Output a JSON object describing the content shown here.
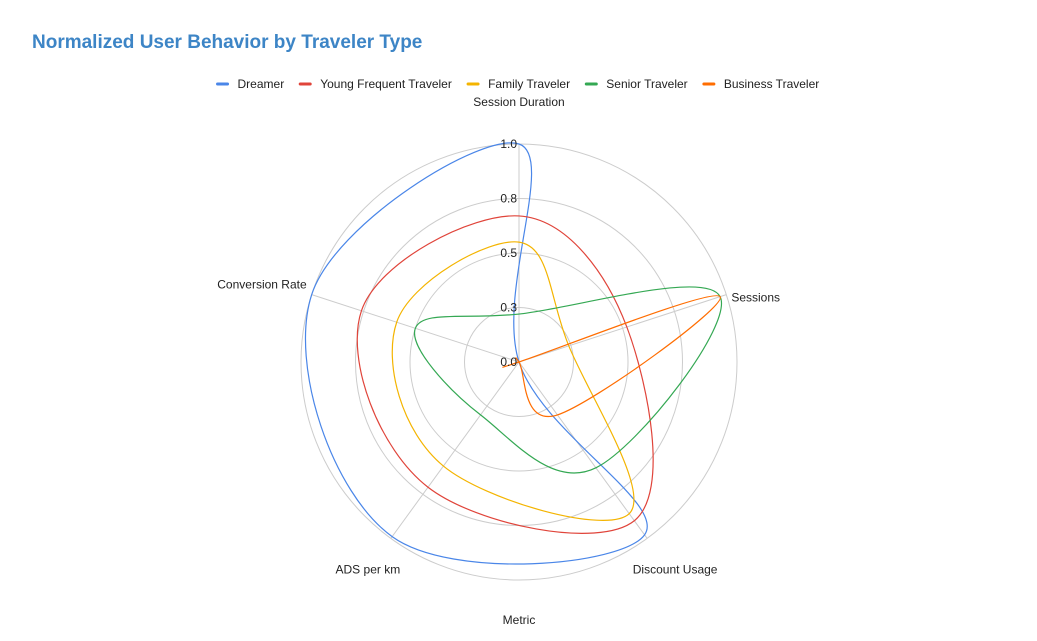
{
  "chart_data": {
    "type": "radar",
    "title": "Normalized User Behavior by Traveler Type",
    "xlabel": "Metric",
    "axes": [
      "Session Duration",
      "Sessions",
      "Discount Usage",
      "ADS per km",
      "Conversion Rate"
    ],
    "rlim": [
      0,
      1
    ],
    "ticks": [
      "0.0",
      "0.3",
      "0.5",
      "0.8",
      "1.0"
    ],
    "legend_position": "top",
    "grid": true,
    "series": [
      {
        "name": "Dreamer",
        "color": "#4a86e8",
        "values": [
          1.0,
          0.0,
          0.98,
          0.99,
          1.0
        ]
      },
      {
        "name": "Young Frequent Traveler",
        "color": "#e0443a",
        "values": [
          0.67,
          0.52,
          0.9,
          0.71,
          0.76
        ]
      },
      {
        "name": "Family Traveler",
        "color": "#f4b400",
        "values": [
          0.55,
          0.24,
          0.86,
          0.59,
          0.59
        ]
      },
      {
        "name": "Senior Traveler",
        "color": "#34a853",
        "values": [
          0.22,
          0.97,
          0.6,
          0.3,
          0.5
        ]
      },
      {
        "name": "Business Traveler",
        "color": "#ff6d01",
        "values": [
          0.0,
          0.97,
          0.3,
          0.0,
          0.0
        ]
      }
    ]
  }
}
